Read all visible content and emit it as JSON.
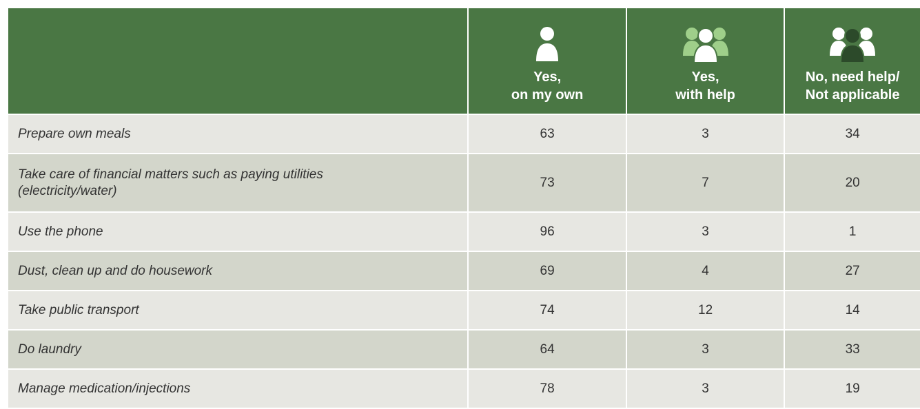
{
  "table": {
    "columns": [
      [
        "Yes,",
        "on my own"
      ],
      [
        "Yes,",
        "with help"
      ],
      [
        "No, need help/",
        "Not applicable"
      ]
    ],
    "rows": [
      {
        "label": "Prepare own meals",
        "values": [
          63,
          3,
          34
        ]
      },
      {
        "label": "Take care of financial matters such as paying utilities (electricity/water)",
        "values": [
          73,
          7,
          20
        ]
      },
      {
        "label": "Use the phone",
        "values": [
          96,
          3,
          1
        ]
      },
      {
        "label": "Dust, clean up and do housework",
        "values": [
          69,
          4,
          27
        ]
      },
      {
        "label": "Take public transport",
        "values": [
          74,
          12,
          14
        ]
      },
      {
        "label": "Do laundry",
        "values": [
          64,
          3,
          33
        ]
      },
      {
        "label": "Manage medication/injections",
        "values": [
          78,
          3,
          19
        ]
      }
    ]
  }
}
